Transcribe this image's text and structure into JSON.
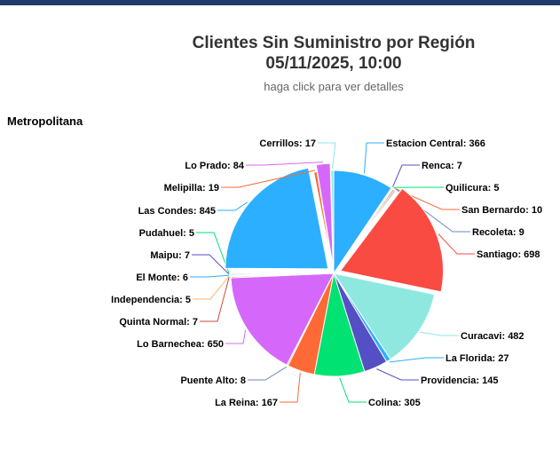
{
  "header": {
    "title_line1": "Clientes Sin Suministro por Región",
    "title_line2": "05/11/2025, 10:00",
    "subtitle": "haga click para ver detalles",
    "region_label": "Metropolitana"
  },
  "colors": {
    "topbar": "#1f3a6b"
  },
  "chart_data": {
    "type": "pie",
    "title": "Clientes Sin Suministro por Región",
    "subtitle": "haga click para ver detalles",
    "categories": [
      "Estacion Central",
      "Renca",
      "Quilicura",
      "San Bernardo",
      "Recoleta",
      "Santiago",
      "Curacavi",
      "La Florida",
      "Providencia",
      "Colina",
      "La Reina",
      "Puente Alto",
      "Lo Barnechea",
      "Quinta Normal",
      "Independencia",
      "El Monte",
      "Maipu",
      "Pudahuel",
      "Las Condes",
      "Melipilla",
      "Lo Prado",
      "Cerrillos"
    ],
    "values": [
      366,
      7,
      5,
      10,
      9,
      698,
      482,
      27,
      145,
      305,
      167,
      8,
      650,
      7,
      5,
      6,
      7,
      5,
      845,
      19,
      84,
      17
    ],
    "colors": [
      "#2caffe",
      "#544fc5",
      "#00e272",
      "#fe6a35",
      "#6b8abc",
      "#fa4b42",
      "#8ee8e0",
      "#2caffe",
      "#544fc5",
      "#00e272",
      "#fe6a35",
      "#6b8abc",
      "#d568fb",
      "#d1463f",
      "#feb56a",
      "#2caffe",
      "#544fc5",
      "#00e272",
      "#2caffe",
      "#fe6a35",
      "#d568fb",
      "#8ee8e0"
    ],
    "sliced": [
      "Santiago",
      "Las Condes",
      "Lo Prado"
    ]
  }
}
